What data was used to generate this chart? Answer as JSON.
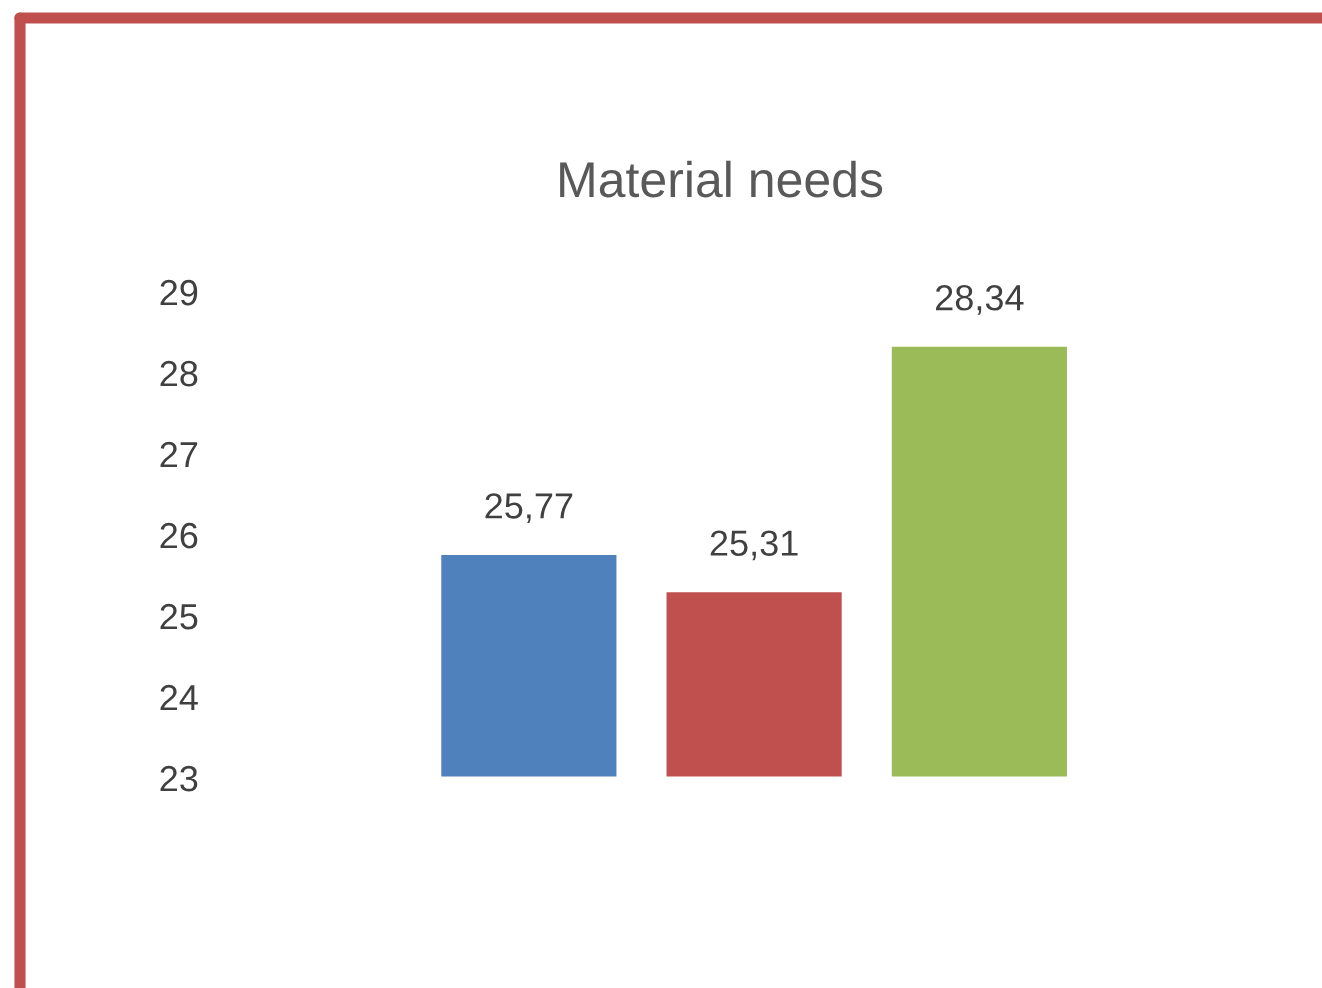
{
  "chart_data": {
    "type": "bar",
    "title": "Material needs",
    "categories": [
      null,
      null,
      null
    ],
    "values": [
      25.77,
      25.31,
      28.34
    ],
    "colors": [
      "#4f81bd",
      "#c0504d",
      "#9bbb59"
    ],
    "value_labels": [
      "25,77",
      "25,31",
      "28,34"
    ],
    "ylim": [
      23,
      29
    ],
    "yticks": [
      23,
      24,
      25,
      26,
      27,
      28,
      29
    ],
    "tick_labels": "y",
    "grid": false,
    "legend": false
  }
}
